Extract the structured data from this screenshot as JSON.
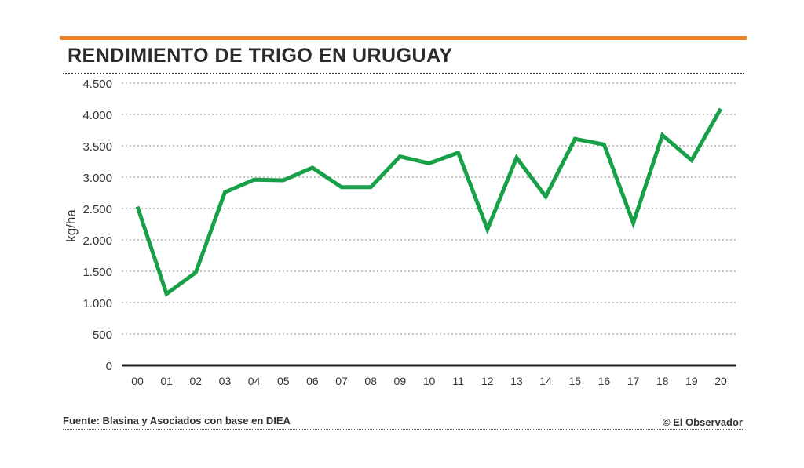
{
  "chart_data": {
    "type": "line",
    "title": "RENDIMIENTO DE TRIGO EN URUGUAY",
    "xlabel": "",
    "ylabel": "kg/ha",
    "categories": [
      "00",
      "01",
      "02",
      "03",
      "04",
      "05",
      "06",
      "07",
      "08",
      "09",
      "10",
      "11",
      "12",
      "13",
      "14",
      "15",
      "16",
      "17",
      "18",
      "19",
      "20"
    ],
    "series": [
      {
        "name": "Rendimiento",
        "values": [
          2530,
          1140,
          1480,
          2760,
          2960,
          2950,
          3150,
          2840,
          2840,
          3330,
          3220,
          3390,
          2170,
          3310,
          2690,
          3610,
          3520,
          2270,
          3670,
          3270,
          4090
        ]
      }
    ],
    "yticks": [
      0,
      500,
      1000,
      1500,
      2000,
      2500,
      3000,
      3500,
      4000,
      4500
    ],
    "ytick_labels": [
      "0",
      "500",
      "1.000",
      "1.500",
      "2.000",
      "2.500",
      "3.000",
      "3.500",
      "4.000",
      "4.500"
    ],
    "ylim": [
      0,
      4500
    ],
    "line_color": "#18a049"
  },
  "footer": {
    "source": "Fuente: Blasina y Asociados con base en DIEA",
    "credit": "© El Observador"
  },
  "accent_color": "#e8842f"
}
